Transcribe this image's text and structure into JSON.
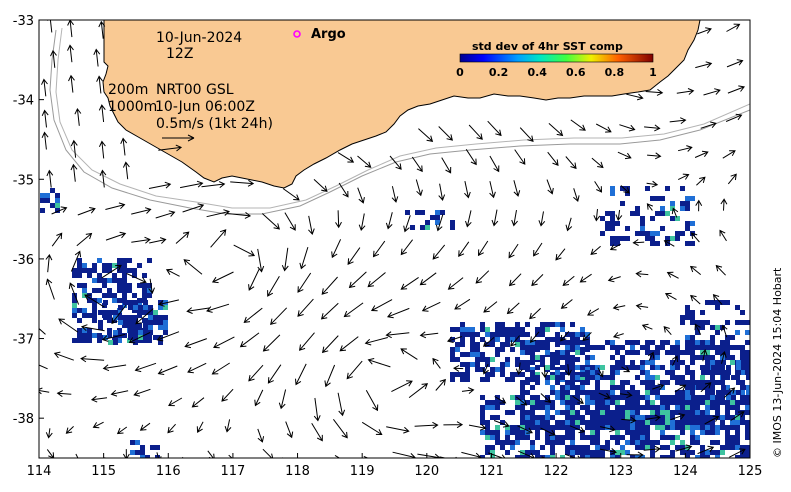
{
  "map": {
    "date": "10-Jun-2024",
    "time": "12Z",
    "depth_shallow": "200m",
    "depth_deep": "1000m",
    "product": "NRT00 GSL",
    "product_time": "10-Jun 06:00Z",
    "scale_label": "0.5m/s (1kt 24h)",
    "argo_label": "Argo",
    "credit": "© IMOS 13-Jun-2024 15:04 Hobart",
    "lon_range": [
      114,
      125
    ],
    "lat_range": [
      -38.5,
      -33
    ],
    "x_ticks": [
      "114",
      "115",
      "116",
      "117",
      "118",
      "119",
      "120",
      "121",
      "122",
      "123",
      "124",
      "125"
    ],
    "y_ticks": [
      "-33",
      "-34",
      "-35",
      "-36",
      "-37",
      "-38"
    ]
  },
  "colorbar": {
    "title": "std dev of 4hr SST comp",
    "ticks": [
      "0",
      "0.2",
      "0.4",
      "0.6",
      "0.8",
      "1"
    ]
  },
  "colors": {
    "land": "#f9c993",
    "sst_low": "#0b1f8c",
    "sst_mid": "#1f6fd6",
    "sst_high": "#3ec3a0",
    "arrow": "#000000",
    "isobath": "#9a9a9a",
    "argo_marker": "#ff00ff"
  }
}
